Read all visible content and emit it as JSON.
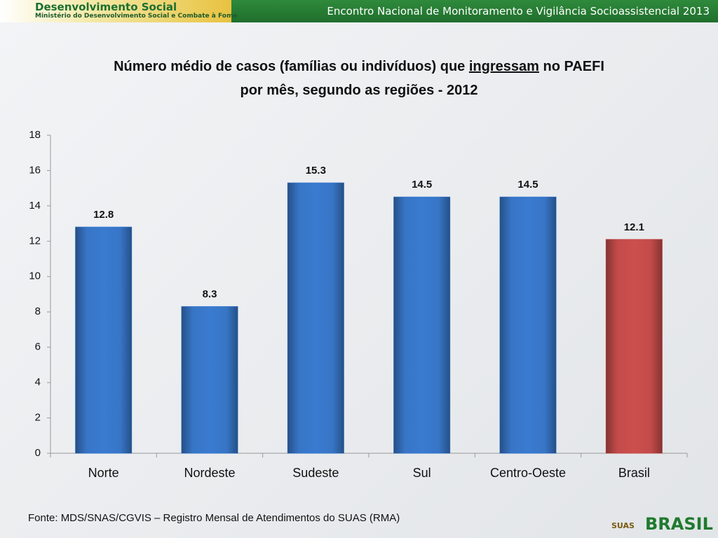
{
  "header": {
    "brand": "Desenvolvimento Social",
    "ministry": "Ministério do Desenvolvimento Social e Combate à Fome",
    "event": "Encontro Nacional de Monitoramento e Vigilância Socioassistencial 2013"
  },
  "chart_data": {
    "type": "bar",
    "title": [
      "Número médio de casos (famílias ou indivíduos) que ",
      "ingressam",
      " no PAEFI",
      "por mês, segundo as regiões - 2012"
    ],
    "categories": [
      "Norte",
      "Nordeste",
      "Sudeste",
      "Sul",
      "Centro-Oeste",
      "Brasil"
    ],
    "values": [
      12.8,
      8.3,
      15.3,
      14.5,
      14.5,
      12.1
    ],
    "colors": [
      "#3a7bd0",
      "#3a7bd0",
      "#3a7bd0",
      "#3a7bd0",
      "#3a7bd0",
      "#cc4f4d"
    ],
    "ylim": [
      0,
      18
    ],
    "yticks": [
      0,
      2,
      4,
      6,
      8,
      10,
      12,
      14,
      16,
      18
    ],
    "grid": false
  },
  "source": "Fonte: MDS/SNAS/CGVIS – Registro Mensal de Atendimentos do SUAS (RMA)",
  "logos": [
    "SUAS",
    "BRASIL"
  ]
}
